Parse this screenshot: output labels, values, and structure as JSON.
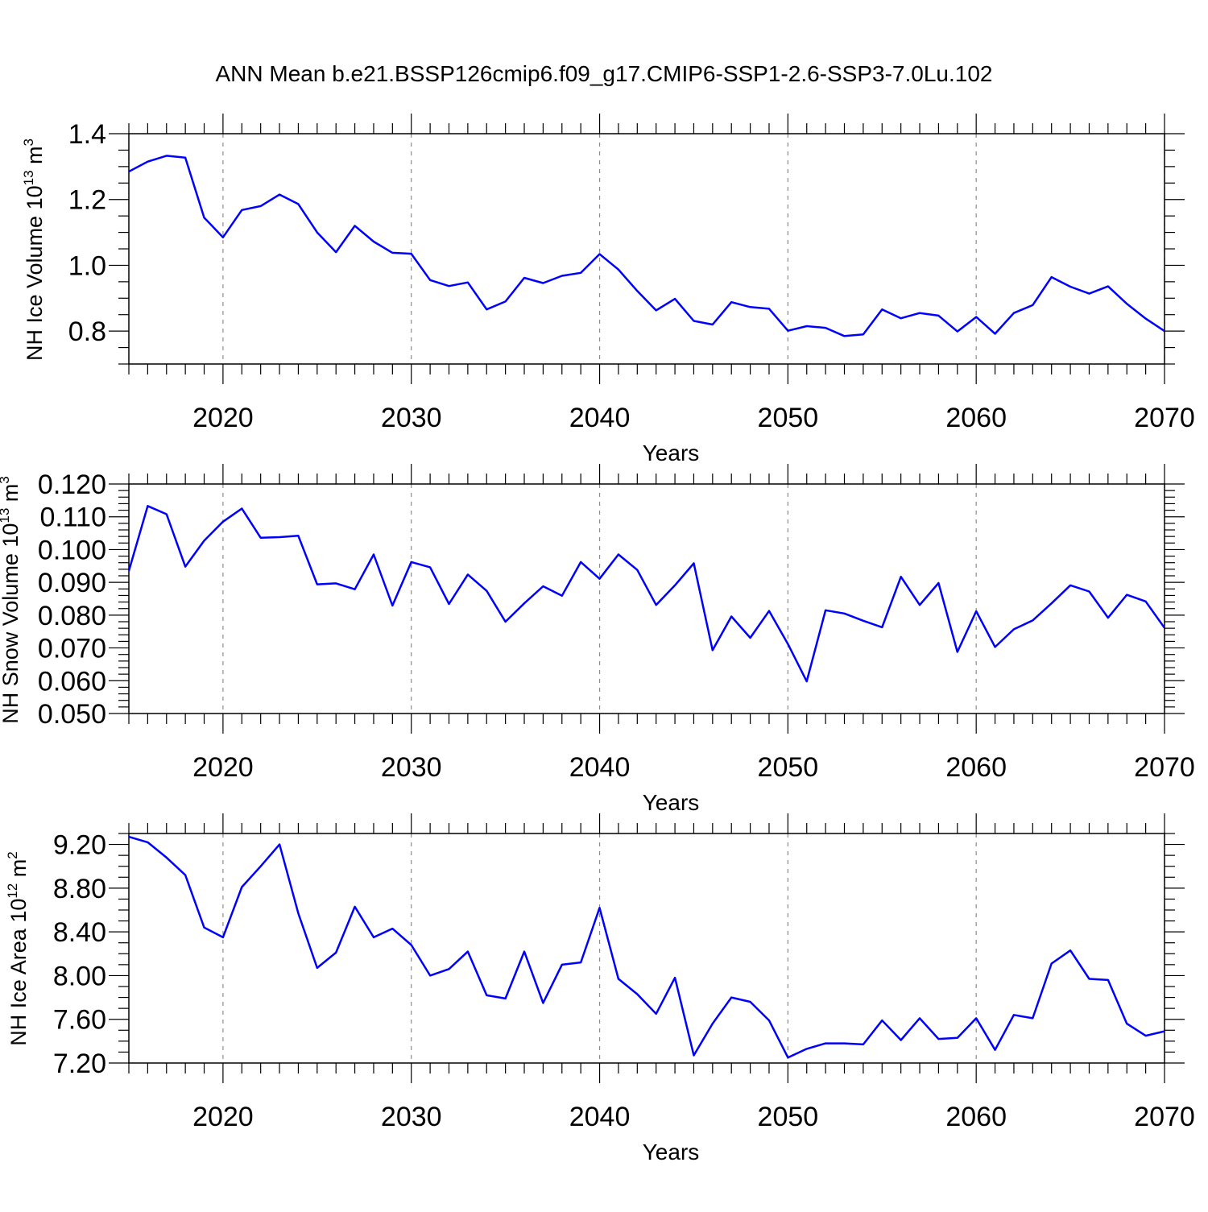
{
  "figure_title": "ANN Mean b.e21.BSSP126cmip6.f09_g17.CMIP6-SSP1-2.6-SSP3-7.0Lu.102",
  "colors": {
    "line": "#0000ff",
    "axis": "#000000",
    "grid": "#8c8c8c"
  },
  "chart_data": [
    {
      "type": "line",
      "title": "",
      "xlabel": "Years",
      "ylabel": {
        "prefix": "NH Ice Volume 10",
        "exp1": "13",
        "unit": " m",
        "exp2": "3"
      },
      "xlim": [
        2015,
        2070
      ],
      "ylim": [
        0.7,
        1.4
      ],
      "xticks": [
        2020,
        2030,
        2040,
        2050,
        2060,
        2070
      ],
      "yticks": [
        0.8,
        1.0,
        1.2,
        1.4
      ],
      "ytick_labels": [
        "0.8",
        "1.0",
        "1.2",
        "1.4"
      ],
      "yminor_step": 0.05,
      "grid": "vertical dashed at major x ticks",
      "x": [
        2015,
        2016,
        2017,
        2018,
        2019,
        2020,
        2021,
        2022,
        2023,
        2024,
        2025,
        2026,
        2027,
        2028,
        2029,
        2030,
        2031,
        2032,
        2033,
        2034,
        2035,
        2036,
        2037,
        2038,
        2039,
        2040,
        2041,
        2042,
        2043,
        2044,
        2045,
        2046,
        2047,
        2048,
        2049,
        2050,
        2051,
        2052,
        2053,
        2054,
        2055,
        2056,
        2057,
        2058,
        2059,
        2060,
        2061,
        2062,
        2063,
        2064,
        2065,
        2066,
        2067,
        2068,
        2069,
        2070
      ],
      "series": [
        {
          "values": [
            1.285,
            1.315,
            1.333,
            1.327,
            1.145,
            1.085,
            1.168,
            1.18,
            1.215,
            1.186,
            1.1,
            1.04,
            1.12,
            1.072,
            1.038,
            1.035,
            0.955,
            0.937,
            0.948,
            0.866,
            0.89,
            0.962,
            0.946,
            0.968,
            0.977,
            1.034,
            0.987,
            0.922,
            0.863,
            0.898,
            0.831,
            0.82,
            0.888,
            0.873,
            0.868,
            0.801,
            0.815,
            0.81,
            0.785,
            0.79,
            0.866,
            0.839,
            0.855,
            0.847,
            0.799,
            0.843,
            0.792,
            0.855,
            0.879,
            0.964,
            0.935,
            0.914,
            0.936,
            0.883,
            0.838,
            0.8
          ]
        }
      ]
    },
    {
      "type": "line",
      "title": "",
      "xlabel": "Years",
      "ylabel": {
        "prefix": "NH Snow Volume 10",
        "exp1": "13",
        "unit": " m",
        "exp2": "3"
      },
      "xlim": [
        2015,
        2070
      ],
      "ylim": [
        0.05,
        0.12
      ],
      "xticks": [
        2020,
        2030,
        2040,
        2050,
        2060,
        2070
      ],
      "yticks": [
        0.05,
        0.06,
        0.07,
        0.08,
        0.09,
        0.1,
        0.11,
        0.12
      ],
      "ytick_labels": [
        "0.050",
        "0.060",
        "0.070",
        "0.080",
        "0.090",
        "0.100",
        "0.110",
        "0.120"
      ],
      "yminor_step": 0.002,
      "grid": "vertical dashed at major x ticks",
      "x": [
        2015,
        2016,
        2017,
        2018,
        2019,
        2020,
        2021,
        2022,
        2023,
        2024,
        2025,
        2026,
        2027,
        2028,
        2029,
        2030,
        2031,
        2032,
        2033,
        2034,
        2035,
        2036,
        2037,
        2038,
        2039,
        2040,
        2041,
        2042,
        2043,
        2044,
        2045,
        2046,
        2047,
        2048,
        2049,
        2050,
        2051,
        2052,
        2053,
        2054,
        2055,
        2056,
        2057,
        2058,
        2059,
        2060,
        2061,
        2062,
        2063,
        2064,
        2065,
        2066,
        2067,
        2068,
        2069,
        2070
      ],
      "series": [
        {
          "values": [
            0.0935,
            0.1133,
            0.1108,
            0.0948,
            0.1027,
            0.1085,
            0.1125,
            0.1036,
            0.1038,
            0.1042,
            0.0894,
            0.0897,
            0.0879,
            0.0985,
            0.0829,
            0.0962,
            0.0946,
            0.0834,
            0.0924,
            0.0874,
            0.078,
            0.0836,
            0.0888,
            0.0859,
            0.0962,
            0.0911,
            0.0985,
            0.0938,
            0.0831,
            0.0891,
            0.0958,
            0.0693,
            0.0796,
            0.0731,
            0.0813,
            0.0712,
            0.0598,
            0.0815,
            0.0805,
            0.0783,
            0.0763,
            0.0917,
            0.0831,
            0.0898,
            0.0688,
            0.0812,
            0.0703,
            0.0757,
            0.0784,
            0.0836,
            0.0891,
            0.0872,
            0.0792,
            0.0862,
            0.0842,
            0.0761
          ]
        }
      ]
    },
    {
      "type": "line",
      "title": "",
      "xlabel": "Years",
      "ylabel": {
        "prefix": "NH Ice Area 10",
        "exp1": "12",
        "unit": " m",
        "exp2": "2"
      },
      "xlim": [
        2015,
        2070
      ],
      "ylim": [
        7.2,
        9.3
      ],
      "xticks": [
        2020,
        2030,
        2040,
        2050,
        2060,
        2070
      ],
      "yticks": [
        7.2,
        7.6,
        8.0,
        8.4,
        8.8,
        9.2
      ],
      "ytick_labels": [
        "7.20",
        "7.60",
        "8.00",
        "8.40",
        "8.80",
        "9.20"
      ],
      "yminor_step": 0.1,
      "grid": "vertical dashed at major x ticks",
      "x": [
        2015,
        2016,
        2017,
        2018,
        2019,
        2020,
        2021,
        2022,
        2023,
        2024,
        2025,
        2026,
        2027,
        2028,
        2029,
        2030,
        2031,
        2032,
        2033,
        2034,
        2035,
        2036,
        2037,
        2038,
        2039,
        2040,
        2041,
        2042,
        2043,
        2044,
        2045,
        2046,
        2047,
        2048,
        2049,
        2050,
        2051,
        2052,
        2053,
        2054,
        2055,
        2056,
        2057,
        2058,
        2059,
        2060,
        2061,
        2062,
        2063,
        2064,
        2065,
        2066,
        2067,
        2068,
        2069,
        2070
      ],
      "series": [
        {
          "values": [
            9.27,
            9.22,
            9.08,
            8.92,
            8.44,
            8.35,
            8.81,
            9,
            9.2,
            8.57,
            8.07,
            8.21,
            8.63,
            8.35,
            8.43,
            8.28,
            8,
            8.06,
            8.22,
            7.82,
            7.79,
            8.22,
            7.75,
            8.1,
            8.12,
            8.62,
            7.97,
            7.83,
            7.65,
            7.98,
            7.27,
            7.56,
            7.8,
            7.76,
            7.59,
            7.25,
            7.33,
            7.38,
            7.38,
            7.37,
            7.59,
            7.41,
            7.61,
            7.42,
            7.43,
            7.61,
            7.32,
            7.64,
            7.61,
            8.11,
            8.23,
            7.97,
            7.96,
            7.56,
            7.45,
            7.49
          ]
        }
      ]
    }
  ]
}
